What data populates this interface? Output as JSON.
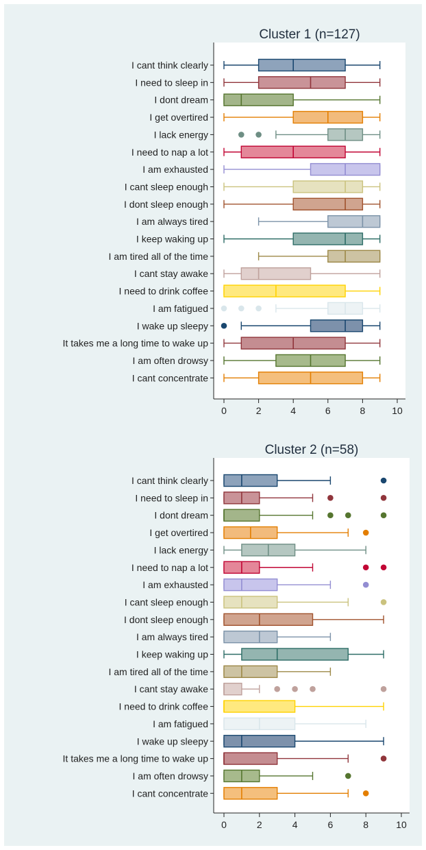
{
  "chart_data": [
    {
      "type": "boxplot",
      "title": "Cluster 1 (n=127)",
      "xlim": [
        0,
        10
      ],
      "xticks": [
        0,
        2,
        4,
        6,
        8,
        10
      ],
      "grid": false,
      "categories": [
        "I cant think clearly",
        "I need to sleep in",
        "I dont dream",
        "I get overtired",
        "I lack energy",
        "I need to nap a lot",
        "I am exhausted",
        "I cant sleep enough",
        "I dont sleep enough",
        "I am always tired",
        "I keep waking up",
        "I am tired all of the time",
        "I cant stay awake",
        "I need to drink coffee",
        "I am fatigued",
        "I wake up sleepy",
        "It takes me a long time to wake up",
        "I am often drowsy",
        "I cant concentrate"
      ],
      "boxes": [
        {
          "min": 0,
          "q1": 2,
          "median": 4,
          "q3": 7,
          "max": 9,
          "outliers": []
        },
        {
          "min": 0,
          "q1": 2,
          "median": 5,
          "q3": 7,
          "max": 9,
          "outliers": []
        },
        {
          "min": 0,
          "q1": 0,
          "median": 1,
          "q3": 4,
          "max": 9,
          "outliers": []
        },
        {
          "min": 0,
          "q1": 4,
          "median": 6,
          "q3": 8,
          "max": 9,
          "outliers": []
        },
        {
          "min": 3,
          "q1": 6,
          "median": 7,
          "q3": 8,
          "max": 9,
          "outliers": [
            1,
            2
          ]
        },
        {
          "min": 0,
          "q1": 1,
          "median": 4,
          "q3": 7,
          "max": 9,
          "outliers": []
        },
        {
          "min": 0,
          "q1": 5,
          "median": 7,
          "q3": 9,
          "max": 9,
          "outliers": []
        },
        {
          "min": 0,
          "q1": 4,
          "median": 7,
          "q3": 8,
          "max": 9,
          "outliers": []
        },
        {
          "min": 0,
          "q1": 4,
          "median": 7,
          "q3": 8,
          "max": 9,
          "outliers": []
        },
        {
          "min": 2,
          "q1": 6,
          "median": 8,
          "q3": 9,
          "max": 9,
          "outliers": []
        },
        {
          "min": 0,
          "q1": 4,
          "median": 7,
          "q3": 8,
          "max": 9,
          "outliers": []
        },
        {
          "min": 2,
          "q1": 6,
          "median": 7,
          "q3": 9,
          "max": 9,
          "outliers": []
        },
        {
          "min": 0,
          "q1": 1,
          "median": 2,
          "q3": 5,
          "max": 9,
          "outliers": []
        },
        {
          "min": 0,
          "q1": 0,
          "median": 3,
          "q3": 7,
          "max": 9,
          "outliers": []
        },
        {
          "min": 3,
          "q1": 6,
          "median": 7,
          "q3": 8,
          "max": 9,
          "outliers": [
            0,
            1,
            2
          ]
        },
        {
          "min": 1,
          "q1": 5,
          "median": 7,
          "q3": 8,
          "max": 9,
          "outliers": [
            0
          ]
        },
        {
          "min": 0,
          "q1": 1,
          "median": 4,
          "q3": 7,
          "max": 9,
          "outliers": []
        },
        {
          "min": 0,
          "q1": 3,
          "median": 5,
          "q3": 7,
          "max": 9,
          "outliers": []
        },
        {
          "min": 0,
          "q1": 2,
          "median": 5,
          "q3": 8,
          "max": 9,
          "outliers": []
        }
      ]
    },
    {
      "type": "boxplot",
      "title": "Cluster 2 (n=58)",
      "xlim": [
        0,
        10
      ],
      "xticks": [
        0,
        2,
        4,
        6,
        8,
        10
      ],
      "grid": false,
      "categories": [
        "I cant think clearly",
        "I need to sleep in",
        "I dont dream",
        "I get overtired",
        "I lack energy",
        "I need to nap a lot",
        "I am exhausted",
        "I cant sleep enough",
        "I dont sleep enough",
        "I am always tired",
        "I keep waking up",
        "I am tired all of the time",
        "I cant stay awake",
        "I need to drink coffee",
        "I am fatigued",
        "I wake up sleepy",
        "It takes me a long time to wake up",
        "I am often drowsy",
        "I cant concentrate"
      ],
      "boxes": [
        {
          "min": 0,
          "q1": 0,
          "median": 1,
          "q3": 3,
          "max": 6,
          "outliers": [
            9
          ]
        },
        {
          "min": 0,
          "q1": 0,
          "median": 1,
          "q3": 2,
          "max": 5,
          "outliers": [
            6,
            9
          ]
        },
        {
          "min": 0,
          "q1": 0,
          "median": 0,
          "q3": 2,
          "max": 5,
          "outliers": [
            6,
            7,
            9
          ]
        },
        {
          "min": 0,
          "q1": 0,
          "median": 1.5,
          "q3": 3,
          "max": 7,
          "outliers": [
            8
          ]
        },
        {
          "min": 0,
          "q1": 1,
          "median": 2.5,
          "q3": 4,
          "max": 8,
          "outliers": []
        },
        {
          "min": 0,
          "q1": 0,
          "median": 1,
          "q3": 2,
          "max": 5,
          "outliers": [
            8,
            9
          ]
        },
        {
          "min": 0,
          "q1": 0,
          "median": 1,
          "q3": 3,
          "max": 6,
          "outliers": [
            8
          ]
        },
        {
          "min": 0,
          "q1": 0,
          "median": 1,
          "q3": 3,
          "max": 7,
          "outliers": [
            9
          ]
        },
        {
          "min": 0,
          "q1": 0,
          "median": 2,
          "q3": 5,
          "max": 9,
          "outliers": []
        },
        {
          "min": 0,
          "q1": 0,
          "median": 2,
          "q3": 3,
          "max": 6,
          "outliers": []
        },
        {
          "min": 0,
          "q1": 1,
          "median": 3,
          "q3": 7,
          "max": 9,
          "outliers": []
        },
        {
          "min": 0,
          "q1": 0,
          "median": 1,
          "q3": 3,
          "max": 6,
          "outliers": []
        },
        {
          "min": 0,
          "q1": 0,
          "median": 0,
          "q3": 1,
          "max": 2,
          "outliers": [
            3,
            4,
            5,
            9
          ]
        },
        {
          "min": 0,
          "q1": 0,
          "median": 0,
          "q3": 4,
          "max": 9,
          "outliers": []
        },
        {
          "min": 0,
          "q1": 0,
          "median": 2,
          "q3": 4,
          "max": 8,
          "outliers": []
        },
        {
          "min": 0,
          "q1": 0,
          "median": 1,
          "q3": 4,
          "max": 9,
          "outliers": []
        },
        {
          "min": 0,
          "q1": 0,
          "median": 0,
          "q3": 3,
          "max": 7,
          "outliers": [
            9
          ]
        },
        {
          "min": 0,
          "q1": 0,
          "median": 1,
          "q3": 2,
          "max": 5,
          "outliers": [
            7
          ]
        },
        {
          "min": 0,
          "q1": 0,
          "median": 1,
          "q3": 3,
          "max": 7,
          "outliers": [
            8
          ]
        }
      ]
    }
  ],
  "palette": [
    {
      "stroke": "#1a476f",
      "fill": "#8ea3bb"
    },
    {
      "stroke": "#90353b",
      "fill": "#c99398"
    },
    {
      "stroke": "#55752f",
      "fill": "#a3b58a"
    },
    {
      "stroke": "#e37e00",
      "fill": "#f2bb7c"
    },
    {
      "stroke": "#6e8e84",
      "fill": "#b5c7c1"
    },
    {
      "stroke": "#c10534",
      "fill": "#e48799"
    },
    {
      "stroke": "#938dd2",
      "fill": "#c8c5ec"
    },
    {
      "stroke": "#cac27e",
      "fill": "#e6e2bf"
    },
    {
      "stroke": "#a0522d",
      "fill": "#d0a48f"
    },
    {
      "stroke": "#7b92a8",
      "fill": "#bdc8d4"
    },
    {
      "stroke": "#2d6d66",
      "fill": "#94b5b0"
    },
    {
      "stroke": "#9c8847",
      "fill": "#cdc3a3"
    },
    {
      "stroke": "#bfa19c",
      "fill": "#e1d0cd"
    },
    {
      "stroke": "#ffd200",
      "fill": "#ffe97f"
    },
    {
      "stroke": "#d9e6eb",
      "fill": "#edf3f5"
    },
    {
      "stroke": "#1a476f",
      "fill": "#7d91ab"
    },
    {
      "stroke": "#90353b",
      "fill": "#c48d91"
    },
    {
      "stroke": "#55752f",
      "fill": "#a7ba8c"
    },
    {
      "stroke": "#e37e00",
      "fill": "#f4bf7d"
    }
  ]
}
